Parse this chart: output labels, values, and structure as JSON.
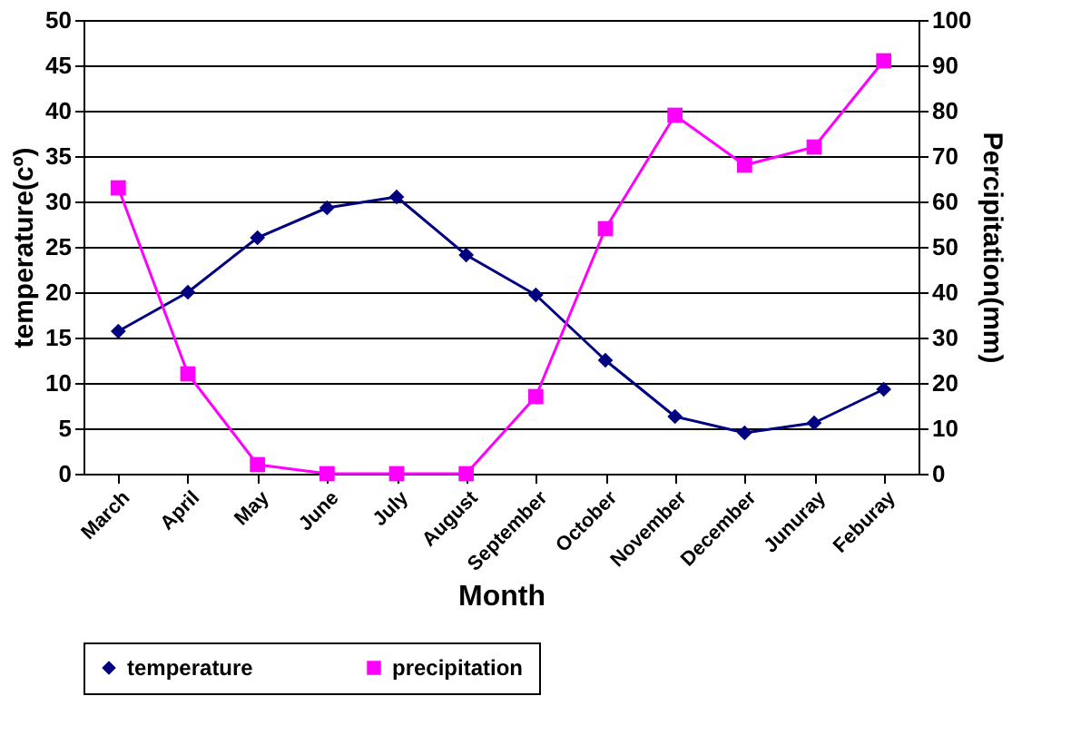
{
  "chart_data": {
    "type": "line",
    "xlabel": "Month",
    "ylabel": "temperature(cº)",
    "y2label": "Percipitation(mm)",
    "categories": [
      "March",
      "April",
      "May",
      "June",
      "July",
      "August",
      "September",
      "October",
      "November",
      "December",
      "Junuray",
      "Feburay"
    ],
    "series": [
      {
        "name": "temperature",
        "color": "#000080",
        "marker": "diamond",
        "values": [
          15.7,
          20,
          26,
          29.3,
          30.5,
          24.1,
          19.7,
          12.5,
          6.3,
          4.5,
          5.6,
          9.3
        ]
      },
      {
        "name": "precipitation",
        "color": "#ff00ff",
        "marker": "square",
        "axis": "y2",
        "values": [
          63,
          22,
          2,
          0,
          0,
          0,
          17,
          54,
          79,
          68,
          72,
          91
        ]
      }
    ],
    "ylim": [
      0,
      50
    ],
    "yticks": [
      0,
      5,
      10,
      15,
      20,
      25,
      30,
      35,
      40,
      45,
      50
    ],
    "y2lim": [
      0,
      100
    ],
    "y2ticks": [
      0,
      10,
      20,
      30,
      40,
      50,
      60,
      70,
      80,
      90,
      100
    ],
    "grid": "y",
    "legend": "bottom",
    "line_style": "solid"
  }
}
